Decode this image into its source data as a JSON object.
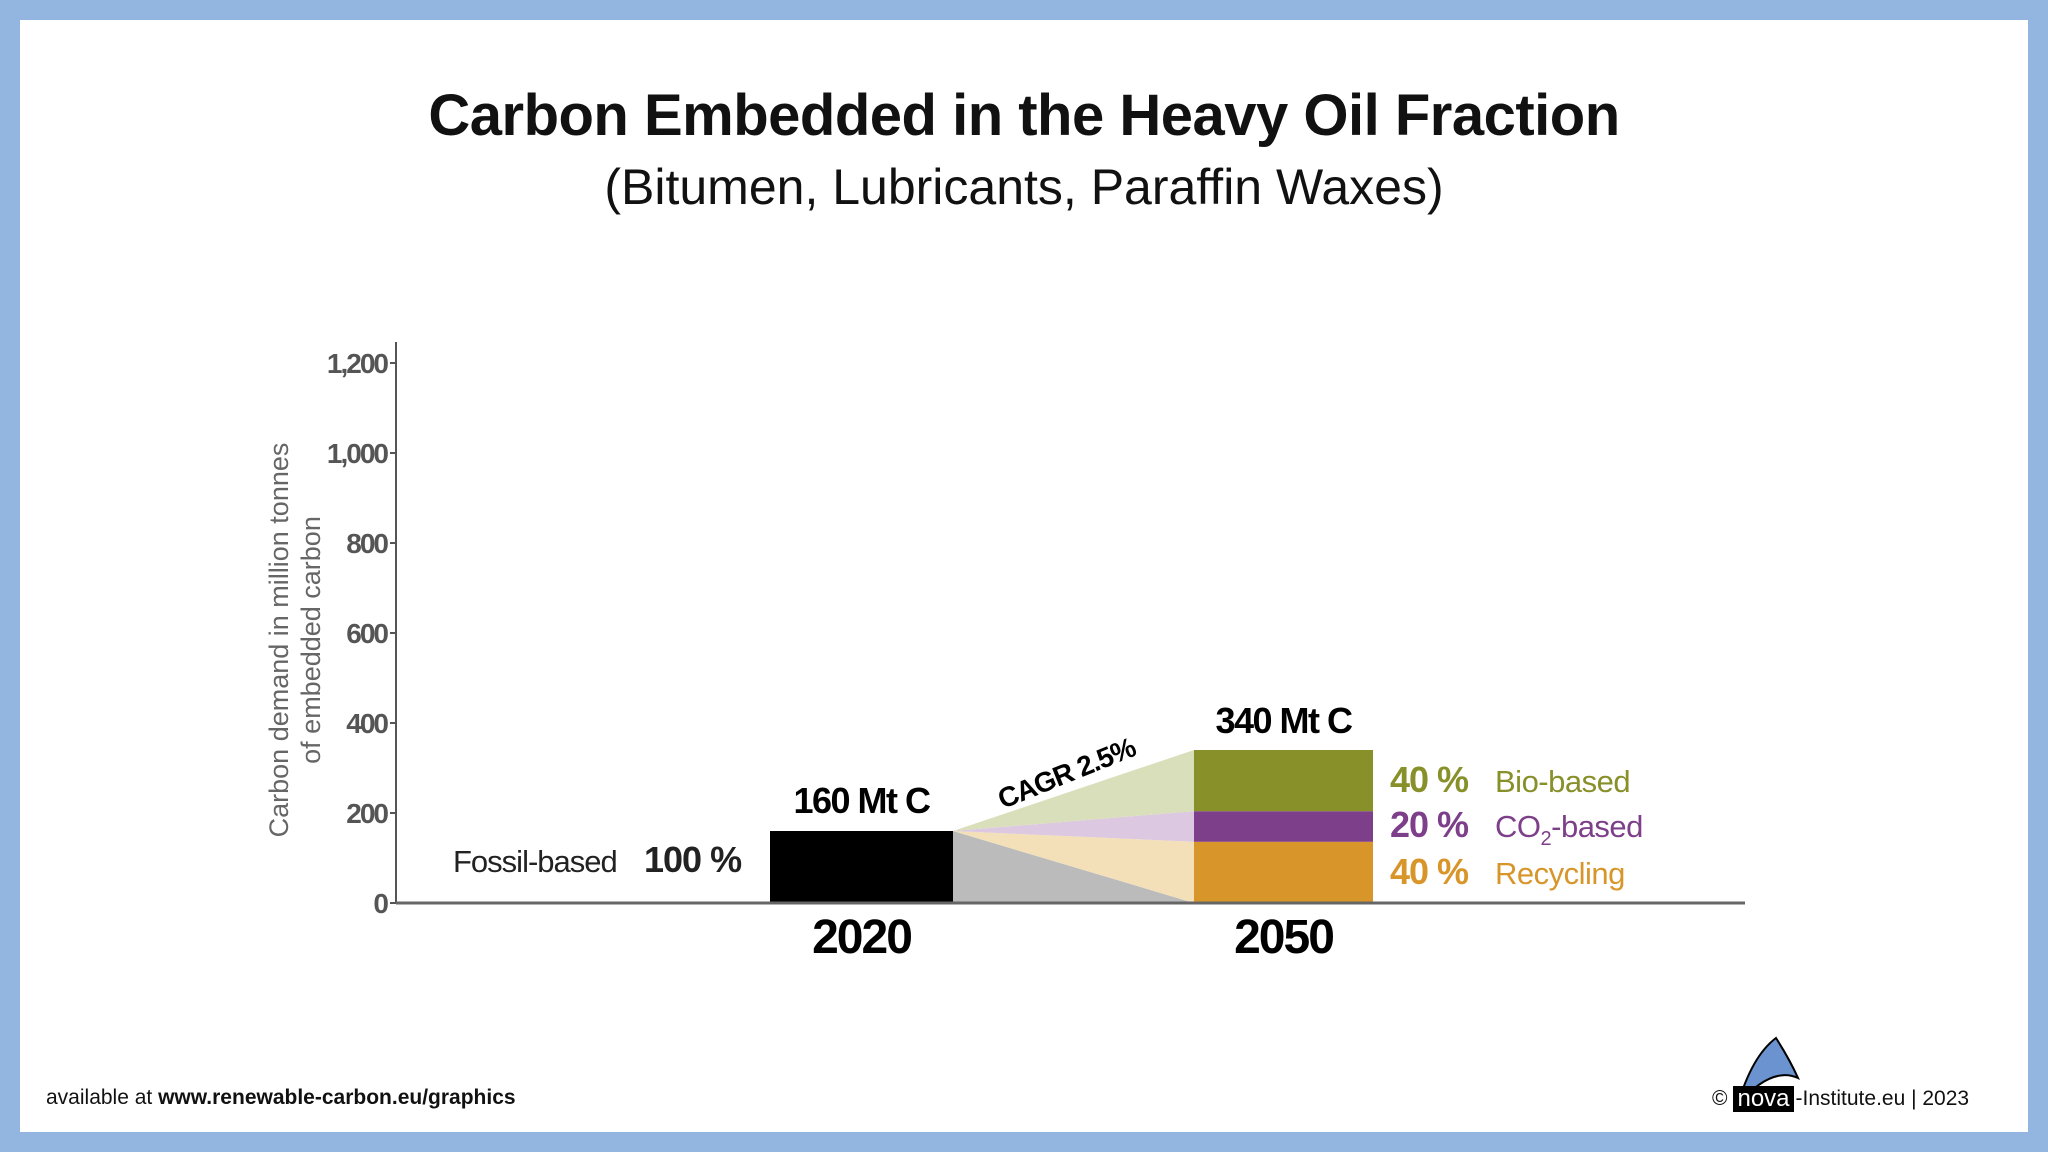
{
  "title": "Carbon Embedded in the Heavy Oil Fraction",
  "subtitle": "(Bitumen, Lubricants, Paraffin Waxes)",
  "chart_data": {
    "type": "bar",
    "categories": [
      "2020",
      "2050"
    ],
    "ylabel_line1": "Carbon demand in million tonnes",
    "ylabel_line2": "of embedded carbon",
    "ylim": [
      0,
      1200
    ],
    "yticks": [
      0,
      200,
      400,
      600,
      800,
      1000,
      1200
    ],
    "ytick_labels": [
      "0",
      "200",
      "400",
      "600",
      "800",
      "1,000",
      "1,200"
    ],
    "grid": false,
    "bars": [
      {
        "year": "2020",
        "total": 160,
        "label": "160 Mt C",
        "segments": [
          {
            "name": "Fossil-based",
            "share": "100 %",
            "value": 160,
            "color": "#000000"
          }
        ]
      },
      {
        "year": "2050",
        "total": 340,
        "label": "340 Mt C",
        "segments": [
          {
            "name": "Recycling",
            "share": "40 %",
            "value": 136,
            "color": "#d8962a",
            "light": "#f3e0b9"
          },
          {
            "name": "CO2-based",
            "name_main": "CO",
            "name_sub": "2",
            "name_tail": "-based",
            "share": "20 %",
            "value": 68,
            "color": "#7d3f8a",
            "light": "#dcc8e0"
          },
          {
            "name": "Bio-based",
            "share": "40 %",
            "value": 136,
            "color": "#879029",
            "light": "#dadfbb"
          }
        ]
      }
    ],
    "annotation": "CAGR 2.5%",
    "fossil_fan_color": "#bbbbbc"
  },
  "footer": {
    "left_prefix": "available at ",
    "left_url": "www.renewable-carbon.eu/graphics",
    "copyright": "©",
    "logo_text": "nova",
    "right_text": "-Institute.eu | 2023"
  }
}
